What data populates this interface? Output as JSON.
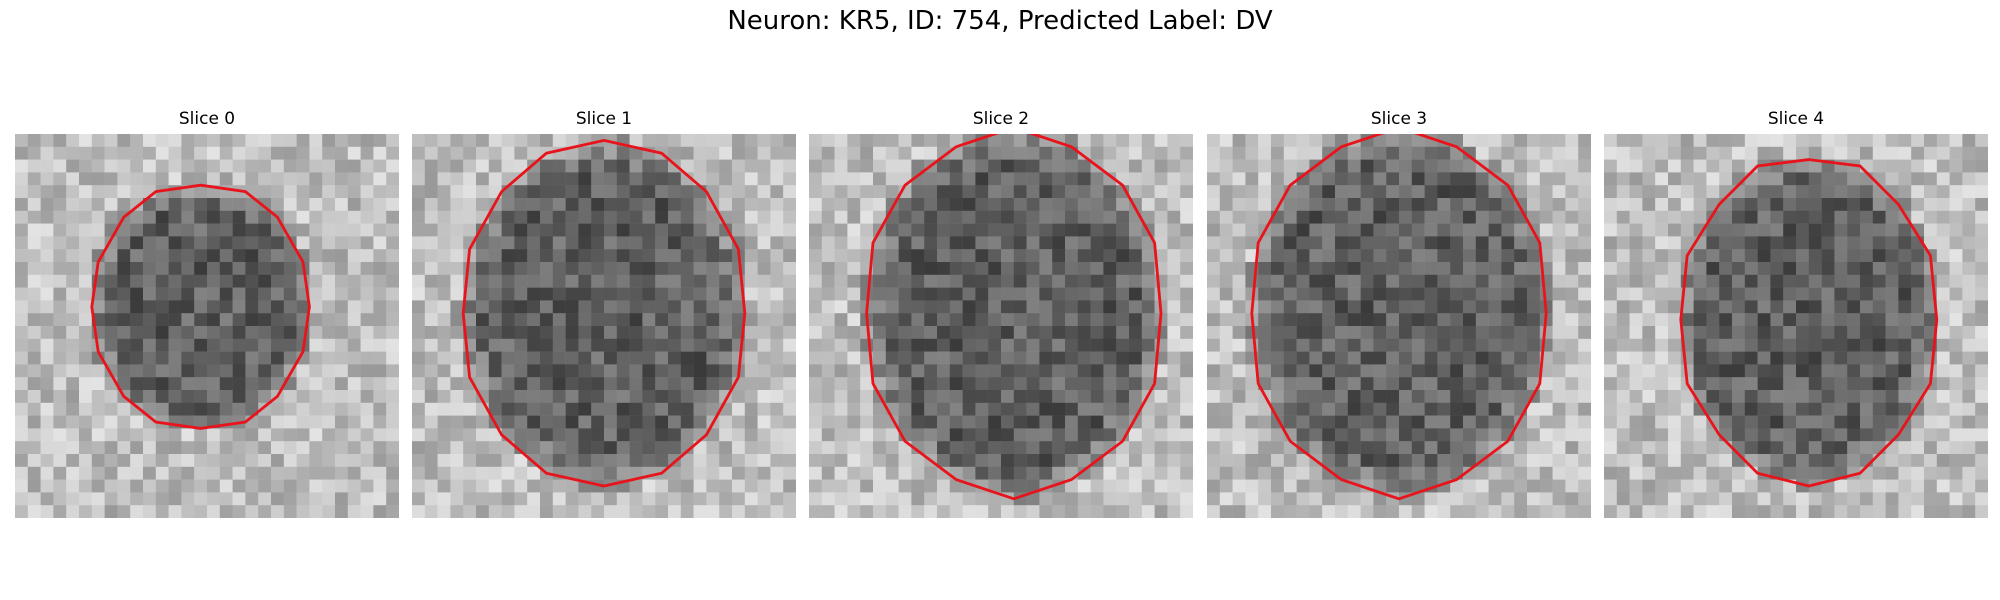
{
  "figure": {
    "title": "Neuron: KR5, ID: 754, Predicted Label: DV"
  },
  "panels": [
    {
      "title": "Slice 0"
    },
    {
      "title": "Slice 1"
    },
    {
      "title": "Slice 2"
    },
    {
      "title": "Slice 3"
    },
    {
      "title": "Slice 4"
    }
  ],
  "colors": {
    "contour": "#e8141c",
    "background": "#ffffff",
    "text": "#000000"
  },
  "colormap": "gray"
}
